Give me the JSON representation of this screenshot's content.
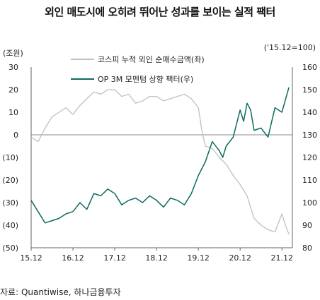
{
  "title": "외인 매도시에 오히려 뛰어난 성과를 보이는 실적 팩터",
  "source": "자료: Quantiwise, 하나금융투자",
  "chart_data": {
    "type": "line",
    "left_axis": {
      "unit_label": "(조원)",
      "ticks": [
        "30",
        "20",
        "10",
        "0",
        "(10)",
        "(20)",
        "(30)",
        "(40)",
        "(50)"
      ],
      "tick_values": [
        30,
        20,
        10,
        0,
        -10,
        -20,
        -30,
        -40,
        -50
      ],
      "ylim": [
        -50,
        30
      ]
    },
    "right_axis": {
      "unit_label": "('15.12=100)",
      "ticks": [
        "160",
        "150",
        "140",
        "130",
        "120",
        "110",
        "100",
        "90",
        "80"
      ],
      "tick_values": [
        160,
        150,
        140,
        130,
        120,
        110,
        100,
        90,
        80
      ],
      "ylim": [
        80,
        160
      ]
    },
    "x_axis": {
      "tick_labels": [
        "15.12",
        "16.12",
        "17.12",
        "18.12",
        "19.12",
        "20.12",
        "21.12"
      ],
      "tick_values": [
        0,
        12,
        24,
        36,
        48,
        60,
        72
      ],
      "xlim": [
        0,
        75
      ]
    },
    "legend": {
      "placement": "top-center"
    },
    "series": [
      {
        "name": "코스피 누적 외인 순매수금액(좌)",
        "axis": "left",
        "color": "#c0c0c0",
        "x": [
          0,
          2,
          4,
          6,
          8,
          10,
          12,
          14,
          16,
          18,
          20,
          22,
          24,
          26,
          28,
          30,
          32,
          34,
          36,
          38,
          40,
          42,
          44,
          46,
          48,
          49,
          50,
          52,
          54,
          56,
          58,
          60,
          62,
          64,
          66,
          68,
          70,
          72,
          73,
          74
        ],
        "y": [
          -1,
          -3,
          3,
          8,
          10,
          12,
          9,
          13,
          16,
          19,
          18,
          20,
          20,
          17,
          18,
          14,
          15,
          17,
          17,
          15,
          16,
          17,
          18,
          16,
          12,
          2,
          -5,
          -6,
          -10,
          -13,
          -18,
          -22,
          -27,
          -37,
          -40,
          -42,
          -43,
          -35,
          -40,
          -44
        ]
      },
      {
        "name": "OP 3M 모멘텀 상향 팩터(우)",
        "axis": "right",
        "color": "#0d6b60",
        "x": [
          0,
          2,
          4,
          6,
          8,
          10,
          12,
          14,
          16,
          18,
          20,
          22,
          24,
          26,
          28,
          30,
          32,
          34,
          36,
          38,
          40,
          42,
          44,
          46,
          48,
          50,
          52,
          54,
          55,
          56,
          58,
          60,
          61,
          62,
          63,
          64,
          66,
          68,
          70,
          72,
          74
        ],
        "y": [
          101,
          96,
          91,
          92,
          93,
          95,
          96,
          100,
          97,
          104,
          103,
          106,
          104,
          99,
          101,
          102,
          100,
          103,
          101,
          98,
          102,
          101,
          99,
          104,
          112,
          118,
          127,
          123,
          120,
          125,
          129,
          141,
          136,
          144,
          141,
          132,
          133,
          129,
          142,
          140,
          151
        ]
      }
    ]
  }
}
